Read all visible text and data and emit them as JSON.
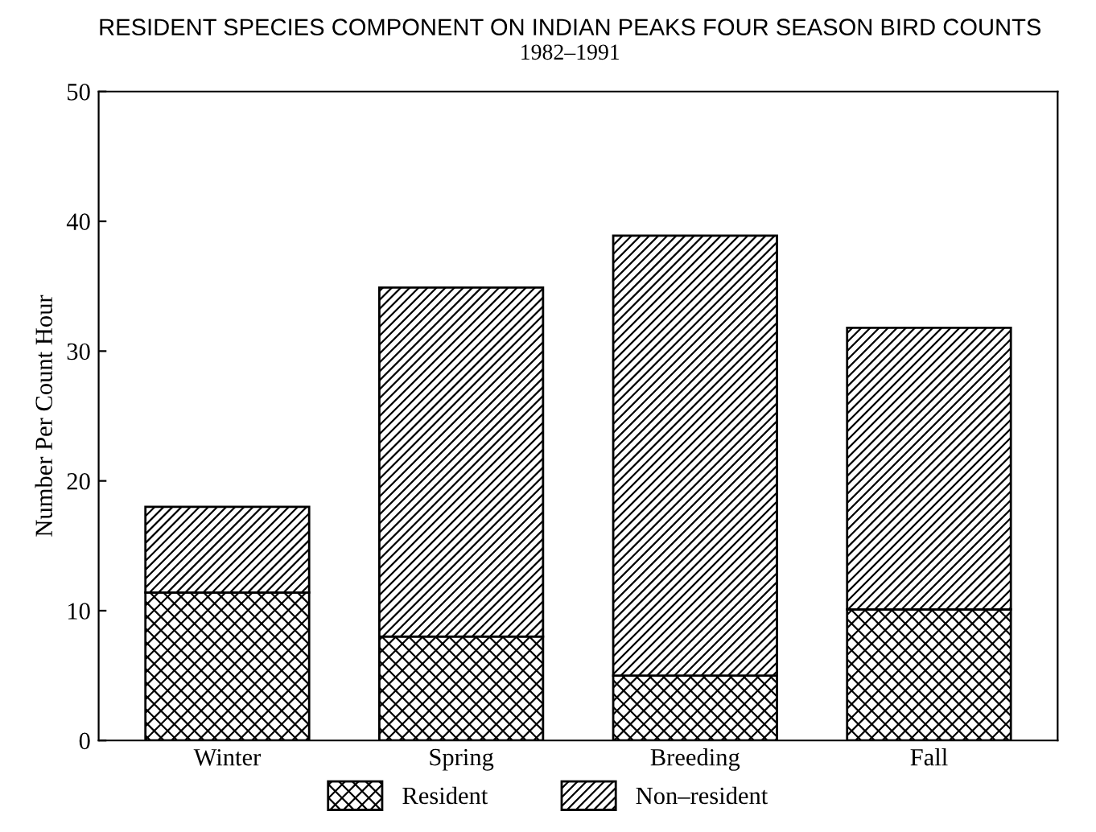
{
  "chart_data": {
    "type": "bar",
    "title": "RESIDENT SPECIES COMPONENT ON INDIAN PEAKS FOUR SEASON BIRD COUNTS",
    "subtitle": "1982–1991",
    "ylabel": "Number Per Count Hour",
    "categories": [
      "Winter",
      "Spring",
      "Breeding",
      "Fall"
    ],
    "stacked": true,
    "series": [
      {
        "name": "Resident",
        "color": "#000000",
        "values": [
          11.4,
          8.0,
          5.0,
          10.1
        ]
      },
      {
        "name": "Non–resident",
        "color": "#000000",
        "values": [
          6.6,
          26.9,
          33.9,
          21.7
        ]
      }
    ],
    "ylim": [
      0,
      50
    ],
    "yticks": [
      0,
      10,
      20,
      30,
      40,
      50
    ],
    "grid": false,
    "legend": "bottom"
  }
}
